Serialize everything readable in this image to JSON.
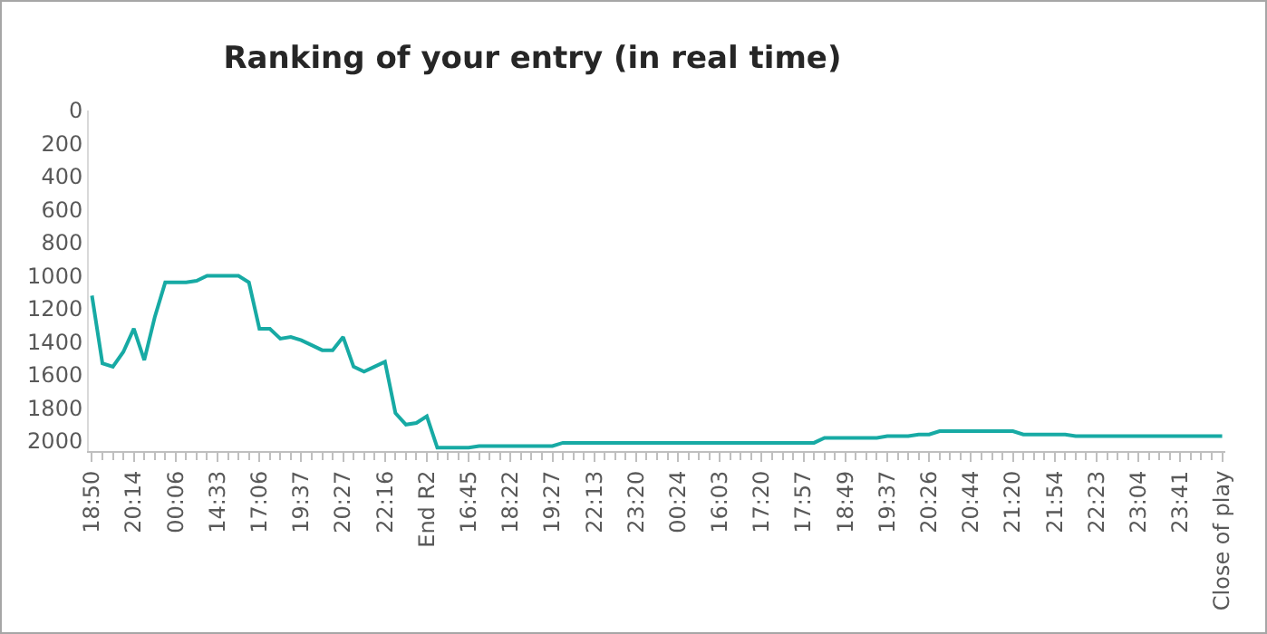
{
  "chart_data": {
    "type": "line",
    "title": "Ranking of your entry (in real time)",
    "categories": [
      "18:50",
      null,
      null,
      null,
      "20:14",
      null,
      null,
      null,
      "00:06",
      null,
      null,
      null,
      "14:33",
      null,
      null,
      null,
      "17:06",
      null,
      null,
      null,
      "19:37",
      null,
      null,
      null,
      "20:27",
      null,
      null,
      null,
      "22:16",
      null,
      null,
      null,
      "End R2",
      null,
      null,
      null,
      "16:45",
      null,
      null,
      null,
      "18:22",
      null,
      null,
      null,
      "19:27",
      null,
      null,
      null,
      "22:13",
      null,
      null,
      null,
      "23:20",
      null,
      null,
      null,
      "00:24",
      null,
      null,
      null,
      "16:03",
      null,
      null,
      null,
      "17:20",
      null,
      null,
      null,
      "17:57",
      null,
      null,
      null,
      "18:49",
      null,
      null,
      null,
      "19:37",
      null,
      null,
      null,
      "20:26",
      null,
      null,
      null,
      "20:44",
      null,
      null,
      null,
      "21:20",
      null,
      null,
      null,
      "21:54",
      null,
      null,
      null,
      "22:23",
      null,
      null,
      null,
      "23:04",
      null,
      null,
      null,
      "23:41",
      null,
      null,
      null,
      "Close of play"
    ],
    "series": [
      {
        "color": "#17aaa4",
        "values": [
          1120,
          1530,
          1550,
          1460,
          1320,
          1510,
          1250,
          1040,
          1040,
          1040,
          1030,
          1000,
          1000,
          1000,
          1000,
          1040,
          1320,
          1320,
          1380,
          1370,
          1390,
          1420,
          1450,
          1450,
          1370,
          1550,
          1580,
          1550,
          1520,
          1830,
          1900,
          1890,
          1850,
          2040,
          2040,
          2040,
          2040,
          2030,
          2030,
          2030,
          2030,
          2030,
          2030,
          2030,
          2030,
          2010,
          2010,
          2010,
          2010,
          2010,
          2010,
          2010,
          2010,
          2010,
          2010,
          2010,
          2010,
          2010,
          2010,
          2010,
          2010,
          2010,
          2010,
          2010,
          2010,
          2010,
          2010,
          2010,
          2010,
          2010,
          1980,
          1980,
          1980,
          1980,
          1980,
          1980,
          1970,
          1970,
          1970,
          1960,
          1960,
          1940,
          1940,
          1940,
          1940,
          1940,
          1940,
          1940,
          1940,
          1960,
          1960,
          1960,
          1960,
          1960,
          1970,
          1970,
          1970,
          1970,
          1970,
          1970,
          1970,
          1970,
          1970,
          1970,
          1970,
          1970,
          1970,
          1970,
          1970
        ]
      }
    ],
    "ylim": [
      2060,
      0
    ],
    "yticks": [
      0,
      200,
      400,
      600,
      800,
      1000,
      1200,
      1400,
      1600,
      1800,
      2000
    ],
    "grid": false,
    "marker": "none",
    "line_style": "solid"
  }
}
